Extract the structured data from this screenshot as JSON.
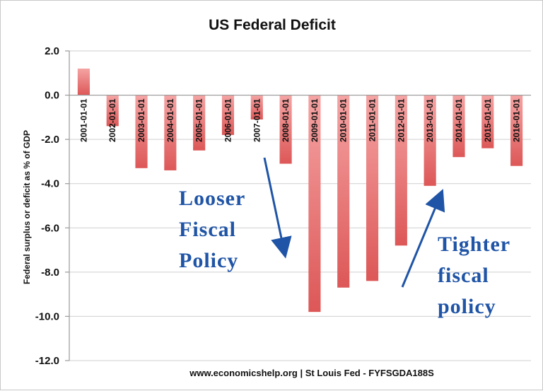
{
  "chart_data": {
    "type": "bar",
    "title": "US Federal Deficit",
    "ylabel": "Federal surplus or deficit as % of GDP",
    "xlabel": "",
    "source": "www.economicshelp.org | St Louis Fed - FYFSGDA188S",
    "ylim": [
      -12.0,
      2.0
    ],
    "yticks": [
      "2.0",
      "0.0",
      "-2.0",
      "-4.0",
      "-6.0",
      "-8.0",
      "-10.0",
      "-12.0"
    ],
    "categories": [
      "2001-01-01",
      "2002-01-01",
      "2003-01-01",
      "2004-01-01",
      "2005-01-01",
      "2006-01-01",
      "2007-01-01",
      "2008-01-01",
      "2009-01-01",
      "2010-01-01",
      "2011-01-01",
      "2012-01-01",
      "2013-01-01",
      "2014-01-01",
      "2015-01-01",
      "2016-01-01"
    ],
    "values": [
      1.2,
      -1.4,
      -3.3,
      -3.4,
      -2.5,
      -1.8,
      -1.1,
      -3.1,
      -9.8,
      -8.7,
      -8.4,
      -6.8,
      -4.1,
      -2.8,
      -2.4,
      -3.2
    ],
    "grid": true,
    "bar_color": "#e05f5f",
    "annotations": [
      {
        "lines": [
          "Looser",
          "Fiscal",
          "Policy"
        ],
        "color": "#1f54a6"
      },
      {
        "lines": [
          "Tighter",
          "fiscal",
          "policy"
        ],
        "color": "#1f54a6"
      }
    ]
  }
}
